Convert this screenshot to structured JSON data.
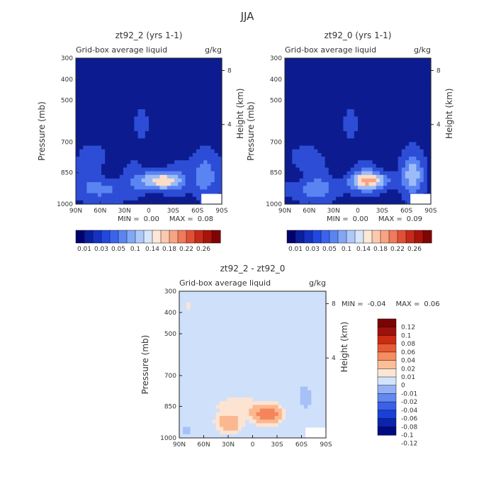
{
  "figure_title": "JJA",
  "colors": {
    "liquid": [
      "#02026e",
      "#0a1ea0",
      "#1532c4",
      "#2148e0",
      "#3a64ec",
      "#5a84f2",
      "#82a7f6",
      "#aec8fa",
      "#d6e4fc",
      "#fde8d8",
      "#fbc9ae",
      "#f8a484",
      "#f07a5a",
      "#e15036",
      "#c82a1a",
      "#a8140c",
      "#800404"
    ],
    "diff": [
      "#010a80",
      "#0a24b0",
      "#1a40d8",
      "#3a60ea",
      "#6388f0",
      "#94b0f6",
      "#d2e4fc",
      "#fde6d4",
      "#fbbe98",
      "#f68c60",
      "#e85a32",
      "#cc2c12",
      "#a0100a",
      "#7a0404"
    ],
    "fill_liquid": [
      "#0c1c90",
      "#2d4dd6",
      "#5a84f2",
      "#9cbcf8",
      "#fddcc8",
      "#f8a484"
    ],
    "fill_diff": [
      "#cfe0fb",
      "#a6c0f8",
      "#fde4d2",
      "#fbb890",
      "#f5845a"
    ]
  },
  "chart_data": [
    {
      "type": "heatmap",
      "title": "zt92_2 (yrs 1-1)",
      "subtitle_left": "Grid-box average liquid",
      "subtitle_right": "g/kg",
      "xlabel": "",
      "ylabel": "Pressure (mb)",
      "y2label": "Height (km)",
      "x_ticks": [
        "90N",
        "60N",
        "30N",
        "0",
        "30S",
        "60S",
        "90S"
      ],
      "y_ticks": [
        "300",
        "400",
        "500",
        "700",
        "850",
        "1000"
      ],
      "y2_ticks": [
        "8",
        "4"
      ],
      "min_label": "MIN =",
      "min_value": "0.00",
      "max_label": "MAX =",
      "max_value": "0.08",
      "colorbar_labels": [
        "0.01",
        "0.03",
        "0.05",
        "0.1",
        "0.14",
        "0.18",
        "0.22",
        "0.26"
      ]
    },
    {
      "type": "heatmap",
      "title": "zt92_0 (yrs 1-1)",
      "subtitle_left": "Grid-box average liquid",
      "subtitle_right": "g/kg",
      "xlabel": "",
      "ylabel": "Pressure (mb)",
      "y2label": "Height (km)",
      "x_ticks": [
        "90N",
        "60N",
        "30N",
        "0",
        "30S",
        "60S",
        "90S"
      ],
      "y_ticks": [
        "300",
        "400",
        "500",
        "700",
        "850",
        "1000"
      ],
      "y2_ticks": [
        "8",
        "4"
      ],
      "min_label": "MIN =",
      "min_value": "0.00",
      "max_label": "MAX =",
      "max_value": "0.09",
      "colorbar_labels": [
        "0.01",
        "0.03",
        "0.05",
        "0.1",
        "0.14",
        "0.18",
        "0.22",
        "0.26"
      ]
    },
    {
      "type": "heatmap",
      "title": "zt92_2 - zt92_0",
      "subtitle_left": "Grid-box average liquid",
      "subtitle_right": "g/kg",
      "xlabel": "",
      "ylabel": "Pressure (mb)",
      "y2label": "Height (km)",
      "x_ticks": [
        "90N",
        "60N",
        "30N",
        "0",
        "30S",
        "60S",
        "90S"
      ],
      "y_ticks": [
        "300",
        "400",
        "500",
        "700",
        "850",
        "1000"
      ],
      "y2_ticks": [
        "8",
        "4"
      ],
      "min_label": "MIN =",
      "min_value": "-0.04",
      "max_label": "MAX =",
      "max_value": "0.06",
      "colorbar_labels": [
        "0.12",
        "0.1",
        "0.08",
        "0.06",
        "0.04",
        "0.02",
        "0.01",
        "0",
        "-0.01",
        "-0.02",
        "-0.04",
        "-0.06",
        "-0.08",
        "-0.1",
        "-0.12"
      ]
    }
  ]
}
